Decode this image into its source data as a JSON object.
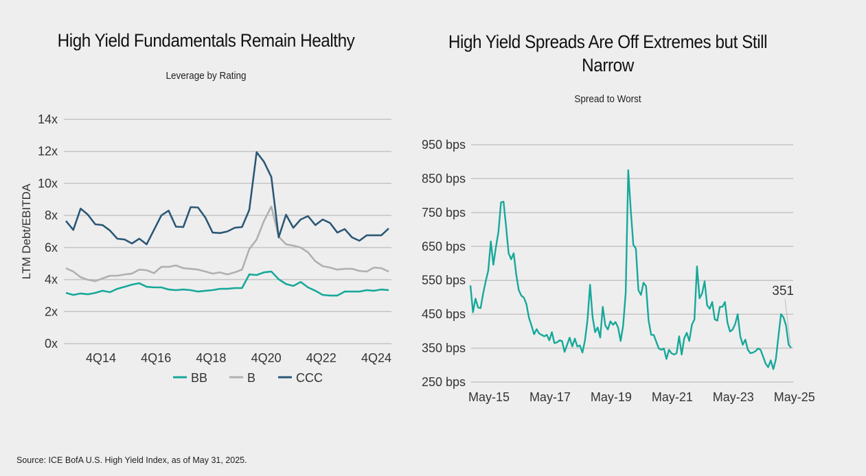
{
  "source": "Source: ICE BofA U.S. High Yield Index, as of May 31, 2025.",
  "chart_data": [
    {
      "type": "line",
      "title": "High Yield Fundamentals Remain Healthy",
      "subtitle": "Leverage by Rating",
      "xlabel": "",
      "ylabel": "LTM Debt/EBITDA",
      "ylim": [
        0,
        14
      ],
      "yticks": [
        "0x",
        "2x",
        "4x",
        "6x",
        "8x",
        "10x",
        "12x",
        "14x"
      ],
      "ytick_values": [
        0,
        2,
        4,
        6,
        8,
        10,
        12,
        14
      ],
      "xtick_labels": [
        "4Q14",
        "4Q16",
        "4Q18",
        "4Q20",
        "4Q22",
        "4Q24"
      ],
      "grid": true,
      "legend": "bottom",
      "series": [
        {
          "name": "BB",
          "color": "#16a89a",
          "values": [
            3.17,
            3.04,
            3.13,
            3.08,
            3.17,
            3.3,
            3.21,
            3.42,
            3.55,
            3.68,
            3.77,
            3.55,
            3.51,
            3.51,
            3.38,
            3.34,
            3.38,
            3.34,
            3.25,
            3.3,
            3.34,
            3.42,
            3.42,
            3.47,
            3.47,
            4.32,
            4.28,
            4.45,
            4.5,
            4.02,
            3.72,
            3.6,
            3.85,
            3.51,
            3.3,
            3.04,
            3.0,
            3.0,
            3.25,
            3.25,
            3.25,
            3.34,
            3.3,
            3.38,
            3.34
          ]
        },
        {
          "name": "B",
          "color": "#b0b0b0",
          "values": [
            4.71,
            4.5,
            4.15,
            3.98,
            3.9,
            4.07,
            4.24,
            4.24,
            4.32,
            4.37,
            4.62,
            4.58,
            4.4,
            4.79,
            4.79,
            4.88,
            4.71,
            4.67,
            4.62,
            4.5,
            4.37,
            4.45,
            4.32,
            4.45,
            4.62,
            5.9,
            6.5,
            7.66,
            8.56,
            6.68,
            6.2,
            6.12,
            6.0,
            5.7,
            5.14,
            4.84,
            4.75,
            4.62,
            4.67,
            4.67,
            4.54,
            4.5,
            4.75,
            4.71,
            4.5
          ]
        },
        {
          "name": "CCC",
          "color": "#2b5776",
          "values": [
            7.66,
            7.1,
            8.43,
            8.05,
            7.45,
            7.4,
            7.06,
            6.55,
            6.5,
            6.25,
            6.55,
            6.2,
            7.1,
            8.0,
            8.3,
            7.3,
            7.28,
            8.52,
            8.5,
            7.87,
            6.93,
            6.9,
            7.0,
            7.23,
            7.28,
            8.35,
            11.95,
            11.35,
            10.4,
            6.63,
            8.05,
            7.23,
            7.75,
            7.96,
            7.4,
            7.75,
            7.53,
            6.93,
            7.15,
            6.63,
            6.42,
            6.76,
            6.76,
            6.76,
            7.19
          ]
        }
      ]
    },
    {
      "type": "line",
      "title": "High Yield Spreads Are Off Extremes but Still Narrow",
      "subtitle": "Spread to Worst",
      "xlabel": "",
      "ylabel": "",
      "ylim": [
        250,
        950
      ],
      "yticks": [
        "250 bps",
        "350 bps",
        "450 bps",
        "550 bps",
        "650 bps",
        "750 bps",
        "850 bps",
        "950 bps"
      ],
      "ytick_values": [
        250,
        350,
        450,
        550,
        650,
        750,
        850,
        950
      ],
      "xtick_labels": [
        "May-15",
        "May-17",
        "May-19",
        "May-21",
        "May-23",
        "May-25"
      ],
      "grid": true,
      "annotation": {
        "text": "351",
        "value": 351
      },
      "series": [
        {
          "name": "Spread to Worst",
          "color": "#16a89a",
          "values": [
            535,
            456,
            496,
            470,
            468,
            511,
            547,
            578,
            665,
            596,
            648,
            693,
            780,
            782,
            709,
            630,
            612,
            630,
            567,
            521,
            505,
            499,
            480,
            440,
            416,
            391,
            406,
            393,
            389,
            385,
            389,
            373,
            397,
            365,
            367,
            373,
            371,
            339,
            360,
            381,
            355,
            378,
            355,
            358,
            337,
            373,
            434,
            537,
            441,
            397,
            411,
            381,
            472,
            417,
            405,
            429,
            419,
            427,
            411,
            371,
            417,
            513,
            875,
            756,
            655,
            644,
            521,
            507,
            543,
            533,
            432,
            389,
            389,
            369,
            349,
            345,
            349,
            318,
            345,
            335,
            331,
            335,
            385,
            331,
            379,
            395,
            371,
            419,
            435,
            591,
            497,
            511,
            547,
            476,
            466,
            486,
            435,
            431,
            472,
            472,
            486,
            425,
            399,
            405,
            421,
            450,
            385,
            360,
            375,
            345,
            335,
            337,
            341,
            349,
            345,
            325,
            304,
            294,
            314,
            288,
            318,
            385,
            450,
            441,
            416,
            360,
            351
          ]
        }
      ]
    }
  ]
}
